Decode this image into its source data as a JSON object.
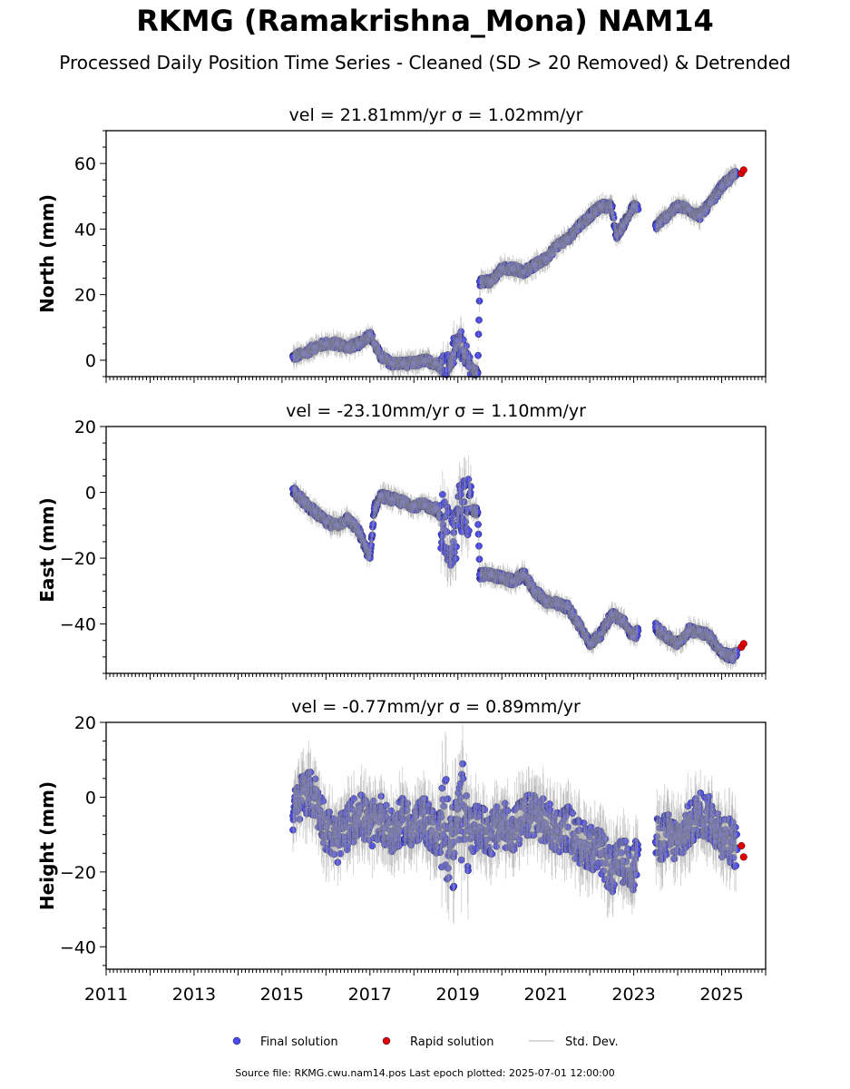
{
  "title": "RKMG (Ramakrishna_Mona) NAM14",
  "subtitle": "Processed Daily Position Time Series - Cleaned (SD > 20 Removed) & Detrended",
  "footer": "Source file: RKMG.cwu.nam14.pos  Last epoch plotted: 2025-07-01 12:00:00",
  "colors": {
    "final": "#4a4af0",
    "rapid": "#e00000",
    "std": "#9a9a9a"
  },
  "legend": [
    {
      "label": "Final solution",
      "kind": "final"
    },
    {
      "label": "Rapid solution",
      "kind": "rapid"
    },
    {
      "label": "Std. Dev.",
      "kind": "std"
    }
  ],
  "chart_data": [
    {
      "type": "scatter",
      "title": "vel = 21.81mm/yr   σ = 1.02mm/yr",
      "ylabel": "North (mm)",
      "xlim": [
        2011,
        2026
      ],
      "ylim": [
        -5,
        70
      ],
      "yticks": [
        0,
        20,
        40,
        60
      ],
      "xticks": [
        2011,
        2013,
        2015,
        2017,
        2019,
        2021,
        2023,
        2025
      ],
      "series": [
        {
          "name": "Final solution",
          "points": [
            [
              2015.25,
              1
            ],
            [
              2015.5,
              2
            ],
            [
              2015.75,
              4
            ],
            [
              2016.0,
              5
            ],
            [
              2016.25,
              5
            ],
            [
              2016.5,
              4
            ],
            [
              2016.75,
              5
            ],
            [
              2017.0,
              8
            ],
            [
              2017.1,
              5
            ],
            [
              2017.25,
              1
            ],
            [
              2017.5,
              -1
            ],
            [
              2017.75,
              -1
            ],
            [
              2018.0,
              -1
            ],
            [
              2018.25,
              0
            ],
            [
              2018.5,
              -1
            ],
            [
              2018.75,
              -3
            ],
            [
              2018.9,
              2
            ],
            [
              2019.0,
              6
            ],
            [
              2019.1,
              3
            ],
            [
              2019.25,
              -2
            ],
            [
              2019.45,
              -4
            ],
            [
              2019.5,
              24
            ],
            [
              2019.75,
              24
            ],
            [
              2020.0,
              28
            ],
            [
              2020.25,
              28
            ],
            [
              2020.5,
              27
            ],
            [
              2020.75,
              29
            ],
            [
              2021.0,
              31
            ],
            [
              2021.25,
              35
            ],
            [
              2021.5,
              37
            ],
            [
              2021.75,
              41
            ],
            [
              2022.0,
              44
            ],
            [
              2022.25,
              47
            ],
            [
              2022.5,
              47
            ],
            [
              2022.6,
              38
            ],
            [
              2022.75,
              41
            ],
            [
              2023.0,
              47
            ],
            [
              2023.1,
              46
            ],
            [
              2023.5,
              41
            ],
            [
              2023.75,
              44
            ],
            [
              2024.0,
              47
            ],
            [
              2024.25,
              46
            ],
            [
              2024.5,
              44
            ],
            [
              2024.75,
              48
            ],
            [
              2025.0,
              53
            ],
            [
              2025.25,
              56
            ],
            [
              2025.35,
              57
            ]
          ]
        },
        {
          "name": "Rapid solution",
          "points": [
            [
              2025.45,
              57
            ],
            [
              2025.5,
              58
            ]
          ]
        }
      ]
    },
    {
      "type": "scatter",
      "title": "vel = -23.10mm/yr   σ = 1.10mm/yr",
      "ylabel": "East (mm)",
      "xlim": [
        2011,
        2026
      ],
      "ylim": [
        -55,
        20
      ],
      "yticks": [
        -40,
        -20,
        0,
        20
      ],
      "xticks": [
        2011,
        2013,
        2015,
        2017,
        2019,
        2021,
        2023,
        2025
      ],
      "series": [
        {
          "name": "Final solution",
          "points": [
            [
              2015.25,
              1
            ],
            [
              2015.5,
              -3
            ],
            [
              2015.75,
              -6
            ],
            [
              2016.0,
              -9
            ],
            [
              2016.25,
              -10
            ],
            [
              2016.5,
              -8
            ],
            [
              2016.75,
              -12
            ],
            [
              2017.0,
              -20
            ],
            [
              2017.1,
              -5
            ],
            [
              2017.25,
              -1
            ],
            [
              2017.5,
              -2
            ],
            [
              2017.75,
              -3
            ],
            [
              2018.0,
              -4
            ],
            [
              2018.25,
              -4
            ],
            [
              2018.5,
              -5
            ],
            [
              2018.75,
              -12
            ],
            [
              2018.9,
              -15
            ],
            [
              2019.0,
              -10
            ],
            [
              2019.1,
              -3
            ],
            [
              2019.25,
              -5
            ],
            [
              2019.45,
              -6
            ],
            [
              2019.5,
              -25
            ],
            [
              2019.75,
              -25
            ],
            [
              2020.0,
              -26
            ],
            [
              2020.25,
              -27
            ],
            [
              2020.5,
              -25
            ],
            [
              2020.75,
              -30
            ],
            [
              2021.0,
              -33
            ],
            [
              2021.25,
              -34
            ],
            [
              2021.5,
              -35
            ],
            [
              2021.75,
              -40
            ],
            [
              2022.0,
              -46
            ],
            [
              2022.25,
              -43
            ],
            [
              2022.5,
              -37
            ],
            [
              2022.75,
              -39
            ],
            [
              2023.0,
              -44
            ],
            [
              2023.1,
              -42
            ],
            [
              2023.5,
              -41
            ],
            [
              2023.75,
              -44
            ],
            [
              2024.0,
              -46
            ],
            [
              2024.25,
              -42
            ],
            [
              2024.5,
              -42
            ],
            [
              2024.75,
              -44
            ],
            [
              2025.0,
              -49
            ],
            [
              2025.25,
              -50
            ],
            [
              2025.35,
              -48
            ]
          ]
        },
        {
          "name": "Rapid solution",
          "points": [
            [
              2025.45,
              -47
            ],
            [
              2025.5,
              -46
            ]
          ]
        }
      ]
    },
    {
      "type": "scatter",
      "title": "vel = -0.77mm/yr   σ = 0.89mm/yr",
      "ylabel": "Height (mm)",
      "xlim": [
        2011,
        2026
      ],
      "ylim": [
        -46,
        20
      ],
      "yticks": [
        -40,
        -20,
        0,
        20
      ],
      "xticks": [
        2011,
        2013,
        2015,
        2017,
        2019,
        2021,
        2023,
        2025
      ],
      "series": [
        {
          "name": "Final solution",
          "points": [
            [
              2015.25,
              -5
            ],
            [
              2015.5,
              2
            ],
            [
              2015.75,
              0
            ],
            [
              2016.0,
              -8
            ],
            [
              2016.25,
              -12
            ],
            [
              2016.5,
              -8
            ],
            [
              2016.75,
              -4
            ],
            [
              2017.0,
              -8
            ],
            [
              2017.25,
              -5
            ],
            [
              2017.5,
              -10
            ],
            [
              2017.75,
              -6
            ],
            [
              2018.0,
              -8
            ],
            [
              2018.25,
              -6
            ],
            [
              2018.5,
              -10
            ],
            [
              2018.75,
              -8
            ],
            [
              2018.9,
              -12
            ],
            [
              2019.0,
              -6
            ],
            [
              2019.1,
              -2
            ],
            [
              2019.25,
              -9
            ],
            [
              2019.5,
              -8
            ],
            [
              2019.75,
              -10
            ],
            [
              2020.0,
              -7
            ],
            [
              2020.25,
              -9
            ],
            [
              2020.5,
              -6
            ],
            [
              2020.75,
              -4
            ],
            [
              2021.0,
              -7
            ],
            [
              2021.25,
              -9
            ],
            [
              2021.5,
              -8
            ],
            [
              2021.75,
              -12
            ],
            [
              2022.0,
              -13
            ],
            [
              2022.25,
              -15
            ],
            [
              2022.5,
              -20
            ],
            [
              2022.75,
              -17
            ],
            [
              2023.0,
              -19
            ],
            [
              2023.1,
              -14
            ],
            [
              2023.5,
              -12
            ],
            [
              2023.75,
              -10
            ],
            [
              2024.0,
              -12
            ],
            [
              2024.25,
              -8
            ],
            [
              2024.5,
              -4
            ],
            [
              2024.75,
              -6
            ],
            [
              2025.0,
              -10
            ],
            [
              2025.25,
              -12
            ],
            [
              2025.35,
              -14
            ]
          ]
        },
        {
          "name": "Rapid solution",
          "points": [
            [
              2025.45,
              -13
            ],
            [
              2025.5,
              -16
            ]
          ]
        }
      ]
    }
  ]
}
